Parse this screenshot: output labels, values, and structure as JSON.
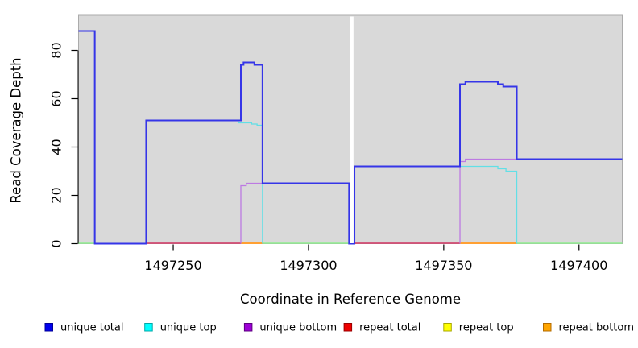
{
  "figure": {
    "background": "#ffffff"
  },
  "chart_data": {
    "type": "line",
    "subtype": "step-coverage",
    "title": "",
    "xlabel": "Coordinate in Reference Genome",
    "ylabel": "Read Coverage Depth",
    "x_axis": {
      "min": 1497215,
      "max": 1497416,
      "ticks": [
        1497250,
        1497300,
        1497350,
        1497400
      ],
      "tick_labels": [
        "1497250",
        "1497300",
        "1497350",
        "1497400"
      ]
    },
    "y_axis": {
      "min": 0,
      "max": 94.5,
      "ticks": [
        0,
        20,
        40,
        60,
        80
      ],
      "tick_labels": [
        "0",
        "20",
        "40",
        "60",
        "80"
      ]
    },
    "plot_background": "#d9d9d9",
    "plot_border": "#ababab",
    "axis_color": "#000000",
    "grid": "off",
    "legend_position": "bottom",
    "gap": {
      "from": 1497315,
      "to": 1497317,
      "color": "#ffffff"
    },
    "series": [
      {
        "name": "unique bottom",
        "color": "#bd7ae2",
        "width": 1.3,
        "paths": [
          [
            [
              1497275,
              0
            ],
            [
              1497275,
              24
            ],
            [
              1497277,
              25
            ],
            [
              1497315,
              0
            ]
          ],
          [
            [
              1497356,
              0
            ],
            [
              1497356,
              34
            ],
            [
              1497358,
              35
            ],
            [
              1497416,
              35
            ]
          ]
        ]
      },
      {
        "name": "unique top",
        "color": "#62dfe6",
        "width": 1.3,
        "paths": [
          [
            [
              1497240,
              51
            ],
            [
              1497274,
              50
            ],
            [
              1497279,
              49.5
            ],
            [
              1497281,
              49
            ],
            [
              1497283,
              0
            ]
          ],
          [
            [
              1497317,
              32
            ],
            [
              1497370,
              31
            ],
            [
              1497373,
              30
            ],
            [
              1497377,
              0
            ]
          ]
        ]
      },
      {
        "name": "unique total",
        "color": "#3535e8",
        "width": 2,
        "paths": [
          [
            [
              1497215,
              88
            ],
            [
              1497221,
              0
            ],
            [
              1497240,
              51
            ],
            [
              1497275,
              74
            ],
            [
              1497276,
              75
            ],
            [
              1497280,
              74
            ],
            [
              1497283,
              25
            ],
            [
              1497315,
              0
            ],
            [
              1497317,
              32
            ],
            [
              1497356,
              66
            ],
            [
              1497358,
              67
            ],
            [
              1497370,
              66
            ],
            [
              1497372,
              65
            ],
            [
              1497377,
              35
            ],
            [
              1497416,
              35
            ]
          ]
        ]
      }
    ],
    "zero_runs": [
      {
        "name": "baseline",
        "color": "#90ee90",
        "width": 1.4,
        "segments": [
          [
            1497215,
            1497221
          ],
          [
            1497283,
            1497315
          ],
          [
            1497377,
            1497416
          ]
        ]
      },
      {
        "name": "repeat total",
        "color": "#d04a70",
        "width": 1.7,
        "segments": [
          [
            1497240,
            1497275
          ],
          [
            1497317,
            1497356
          ]
        ]
      },
      {
        "name": "repeat bottom",
        "color": "#ffa033",
        "width": 2,
        "segments": [
          [
            1497275,
            1497283
          ],
          [
            1497356,
            1497377
          ]
        ]
      }
    ]
  },
  "legend": {
    "items": [
      {
        "label": "unique total",
        "fill": "#0000ee",
        "border": "#000099"
      },
      {
        "label": "unique top",
        "fill": "#00ffff",
        "border": "#00a8a8"
      },
      {
        "label": "unique bottom",
        "fill": "#9d00d6",
        "border": "#5c0080"
      },
      {
        "label": "repeat total",
        "fill": "#ee0000",
        "border": "#990000"
      },
      {
        "label": "repeat top",
        "fill": "#ffff00",
        "border": "#a8a800"
      },
      {
        "label": "repeat bottom",
        "fill": "#ffa500",
        "border": "#b36b00"
      }
    ]
  }
}
